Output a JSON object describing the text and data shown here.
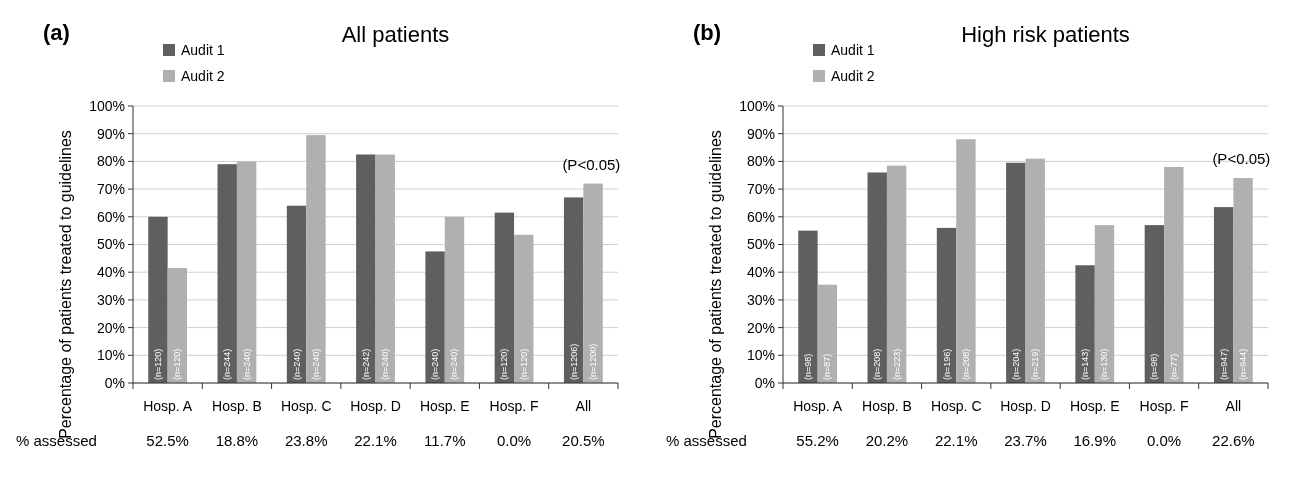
{
  "chart_data": [
    {
      "type": "bar",
      "title": "All patients",
      "ylabel": "Percentage of patients treated to guidelines",
      "categories": [
        "Hosp. A",
        "Hosp. B",
        "Hosp. C",
        "Hosp. D",
        "Hosp. E",
        "Hosp. F",
        "All"
      ],
      "series": [
        {
          "name": "Audit 1",
          "color": "#5f5f5f",
          "values": [
            60,
            79,
            64,
            82.5,
            47.5,
            61.5,
            67
          ]
        },
        {
          "name": "Audit 2",
          "color": "#b0b0b0",
          "values": [
            41.5,
            80,
            89.5,
            82.5,
            60,
            53.5,
            72
          ]
        }
      ],
      "ylim": [
        0,
        100
      ],
      "yticks": [
        {
          "value": 0,
          "label": "0%"
        },
        {
          "value": 10,
          "label": "10%"
        },
        {
          "value": 20,
          "label": "20%"
        },
        {
          "value": 30,
          "label": "30%"
        },
        {
          "value": 40,
          "label": "40%"
        },
        {
          "value": 50,
          "label": "50%"
        },
        {
          "value": 60,
          "label": "60%"
        },
        {
          "value": 70,
          "label": "70%"
        },
        {
          "value": 80,
          "label": "80%"
        },
        {
          "value": 90,
          "label": "90%"
        },
        {
          "value": 100,
          "label": "100%"
        }
      ],
      "grid": "y",
      "legend": "top left",
      "annotations": [
        "(a)",
        "(P<0.05)",
        "% assessed",
        "52.5%",
        "18.8%",
        "23.8%",
        "22.1%",
        "11.7%",
        "0.0%",
        "20.5%",
        "(n=120)",
        "(n=244)",
        "(n=240)",
        "(n=242)",
        "(n=240)",
        "(n=120)",
        "(n=1206)",
        "(n=120)",
        "(n=240)",
        "(n=240)",
        "(n=240)",
        "(n=240)",
        "(n=120)",
        "(n=1200)"
      ]
    },
    {
      "type": "bar",
      "title": "High risk patients",
      "ylabel": "Percentage of patients treated to guidelines",
      "categories": [
        "Hosp. A",
        "Hosp. B",
        "Hosp. C",
        "Hosp. D",
        "Hosp. E",
        "Hosp. F",
        "All"
      ],
      "series": [
        {
          "name": "Audit 1",
          "color": "#5f5f5f",
          "values": [
            55,
            76,
            56,
            79.5,
            42.5,
            57,
            63.5
          ]
        },
        {
          "name": "Audit 2",
          "color": "#b0b0b0",
          "values": [
            35.5,
            78.5,
            88,
            81,
            57,
            78,
            74
          ]
        }
      ],
      "ylim": [
        0,
        100
      ],
      "yticks": [
        {
          "value": 0,
          "label": "0%"
        },
        {
          "value": 10,
          "label": "10%"
        },
        {
          "value": 20,
          "label": "20%"
        },
        {
          "value": 30,
          "label": "30%"
        },
        {
          "value": 40,
          "label": "40%"
        },
        {
          "value": 50,
          "label": "50%"
        },
        {
          "value": 60,
          "label": "60%"
        },
        {
          "value": 70,
          "label": "70%"
        },
        {
          "value": 80,
          "label": "80%"
        },
        {
          "value": 90,
          "label": "90%"
        },
        {
          "value": 100,
          "label": "100%"
        }
      ],
      "grid": "y",
      "legend": "top left",
      "annotations": [
        "(b)",
        "(P<0.05)",
        "% assessed",
        "55.2%",
        "20.2%",
        "22.1%",
        "23.7%",
        "16.9%",
        "0.0%",
        "22.6%",
        "(n=98)",
        "(n=208)",
        "(n=196)",
        "(n=204)",
        "(n=143)",
        "(n=98)",
        "(n=947)",
        "(n=87)",
        "(n=223)",
        "(n=208)",
        "(n=219)",
        "(n=130)",
        "(n=77)",
        "(n=944)"
      ]
    }
  ]
}
